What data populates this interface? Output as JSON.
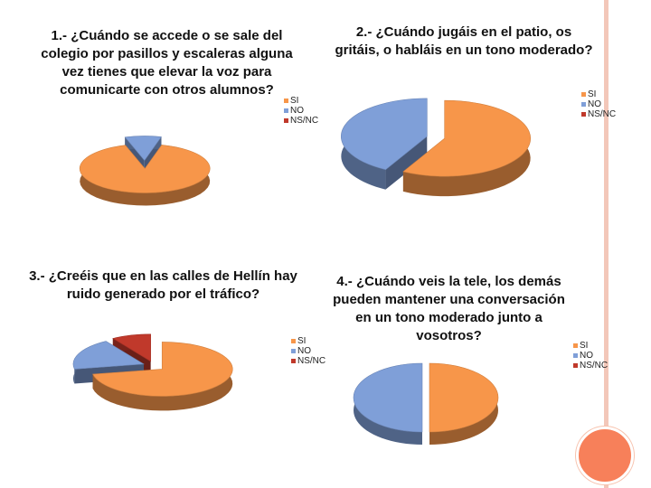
{
  "colors": {
    "si": "#f7964a",
    "no": "#7f9fd8",
    "nsnc": "#c0392b",
    "frame": "#f3c7b9",
    "circle": "#f7805a"
  },
  "chart_data": [
    {
      "type": "pie",
      "title": "1.- ¿Cuándo se accede o se sale del colegio por pasillos y escaleras alguna vez tienes que elevar la voz para comunicarte con otros alumnos?",
      "categories": [
        "SI",
        "NO",
        "NS/NC"
      ],
      "values": [
        91,
        9,
        0
      ],
      "legend": "right"
    },
    {
      "type": "pie",
      "title": "2.- ¿Cuándo jugáis en el patio, os gritáis, o habláis en un tono moderado?",
      "categories": [
        "SI",
        "NO",
        "NS/NC"
      ],
      "values": [
        58,
        42,
        0
      ],
      "legend": "top-right"
    },
    {
      "type": "pie",
      "title": "3.- ¿Creéis que en las calles de Hellín hay ruido generado por el tráfico?",
      "categories": [
        "SI",
        "NO",
        "NS/NC"
      ],
      "values": [
        72,
        19,
        9
      ],
      "legend": "right"
    },
    {
      "type": "pie",
      "title": "4.- ¿Cuándo veis la tele, los demás pueden mantener una conversación en un tono moderado junto a vosotros?",
      "categories": [
        "SI",
        "NO",
        "NS/NC"
      ],
      "values": [
        50,
        50,
        0
      ],
      "legend": "right"
    }
  ]
}
